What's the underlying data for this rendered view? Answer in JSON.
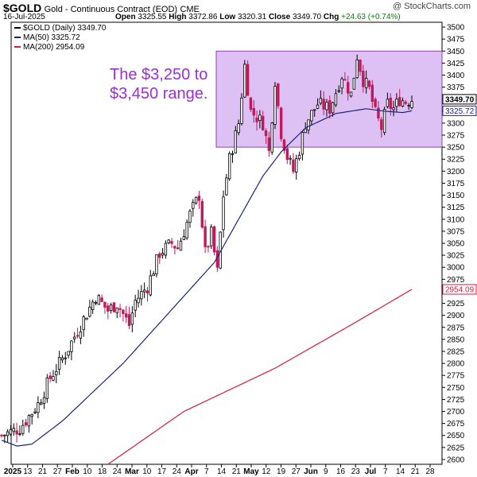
{
  "header": {
    "symbol": "$GOLD",
    "description": "Gold - Continuous Contract (EOD)",
    "exchange": "CME",
    "date": "16-Jul-2025",
    "open_label": "Open",
    "open": "3325.55",
    "high_label": "High",
    "high": "3372.86",
    "low_label": "Low",
    "low": "3320.31",
    "close_label": "Close",
    "close": "3349.70",
    "chg_label": "Chg",
    "chg": "+24.63 (+0.74%)",
    "watermark": "@ StockCharts.com"
  },
  "legend": {
    "price": "$GOLD (Daily) 3349.70",
    "ma50": "MA(50) 3325.72",
    "ma200": "MA(200) 2954.09"
  },
  "annotation": "The $3,250 to\n$3,450 range.",
  "colors": {
    "up": "#000000",
    "down": "#c2185b",
    "ma50": "#1a237e",
    "ma200": "#d81b3f",
    "range_fill": "#d8b6f2",
    "range_stroke": "#8e44ad",
    "annotation": "#9b2fd4"
  },
  "chart_data": {
    "type": "candlestick",
    "y_axis_side": "right",
    "ylim": [
      2590,
      3510
    ],
    "y_ticks": [
      2600,
      2625,
      2650,
      2675,
      2700,
      2725,
      2750,
      2775,
      2800,
      2825,
      2850,
      2875,
      2900,
      2925,
      2950,
      2975,
      3000,
      3025,
      3050,
      3075,
      3100,
      3125,
      3150,
      3175,
      3200,
      3225,
      3250,
      3275,
      3300,
      3325,
      3350,
      3375,
      3400,
      3425,
      3450,
      3475,
      3500
    ],
    "x_ticks": [
      {
        "label": "2025",
        "bold": true
      },
      {
        "label": "13"
      },
      {
        "label": "21"
      },
      {
        "label": "27"
      },
      {
        "label": "Feb",
        "bold": true
      },
      {
        "label": "10"
      },
      {
        "label": "18"
      },
      {
        "label": "24"
      },
      {
        "label": "Mar",
        "bold": true
      },
      {
        "label": "10"
      },
      {
        "label": "17"
      },
      {
        "label": "24"
      },
      {
        "label": "Apr",
        "bold": true
      },
      {
        "label": "7"
      },
      {
        "label": "14"
      },
      {
        "label": "21"
      },
      {
        "label": "May",
        "bold": true
      },
      {
        "label": "12"
      },
      {
        "label": "19"
      },
      {
        "label": "27"
      },
      {
        "label": "Jun",
        "bold": true
      },
      {
        "label": "9"
      },
      {
        "label": "16"
      },
      {
        "label": "23"
      },
      {
        "label": "Jul",
        "bold": true
      },
      {
        "label": "7"
      },
      {
        "label": "14"
      },
      {
        "label": "21"
      },
      {
        "label": "28"
      }
    ],
    "price_tags": [
      {
        "value": 3349.7,
        "label": "3349.70",
        "style": "price"
      },
      {
        "value": 3325.72,
        "label": "3325.72",
        "style": "ma50"
      },
      {
        "value": 2954.09,
        "label": "2954.09",
        "style": "ma200"
      }
    ],
    "range_band": {
      "low": 3250,
      "high": 3450
    },
    "anchors": [
      [
        0,
        2650
      ],
      [
        6,
        2665
      ],
      [
        12,
        2715
      ],
      [
        16,
        2770
      ],
      [
        21,
        2820
      ],
      [
        26,
        2880
      ],
      [
        31,
        2940
      ],
      [
        35,
        2910
      ],
      [
        38,
        2925
      ],
      [
        42,
        2880
      ],
      [
        44,
        2930
      ],
      [
        48,
        2960
      ],
      [
        52,
        3030
      ],
      [
        56,
        3050
      ],
      [
        58,
        3040
      ],
      [
        62,
        3110
      ],
      [
        65,
        3150
      ],
      [
        67,
        3030
      ],
      [
        69,
        3070
      ],
      [
        71,
        2990
      ],
      [
        73,
        3150
      ],
      [
        75,
        3225
      ],
      [
        78,
        3300
      ],
      [
        80,
        3420
      ],
      [
        82,
        3325
      ],
      [
        86,
        3300
      ],
      [
        88,
        3240
      ],
      [
        90,
        3390
      ],
      [
        92,
        3280
      ],
      [
        94,
        3230
      ],
      [
        96,
        3200
      ],
      [
        98,
        3245
      ],
      [
        100,
        3300
      ],
      [
        104,
        3340
      ],
      [
        108,
        3330
      ],
      [
        112,
        3400
      ],
      [
        115,
        3360
      ],
      [
        117,
        3440
      ],
      [
        119,
        3390
      ],
      [
        121,
        3370
      ],
      [
        123,
        3320
      ],
      [
        125,
        3290
      ],
      [
        127,
        3340
      ],
      [
        129,
        3330
      ],
      [
        131,
        3350
      ],
      [
        133,
        3345
      ],
      [
        135,
        3350
      ]
    ],
    "ma50_anchors": [
      [
        0,
        2640
      ],
      [
        5,
        2628
      ],
      [
        10,
        2632
      ],
      [
        20,
        2680
      ],
      [
        30,
        2740
      ],
      [
        40,
        2800
      ],
      [
        50,
        2870
      ],
      [
        60,
        2940
      ],
      [
        70,
        3010
      ],
      [
        78,
        3100
      ],
      [
        86,
        3190
      ],
      [
        92,
        3240
      ],
      [
        100,
        3290
      ],
      [
        110,
        3320
      ],
      [
        120,
        3330
      ],
      [
        126,
        3325
      ],
      [
        132,
        3322
      ],
      [
        135,
        3325.72
      ]
    ],
    "ma200_anchors": [
      [
        35,
        2590
      ],
      [
        60,
        2700
      ],
      [
        90,
        2790
      ],
      [
        115,
        2880
      ],
      [
        135,
        2954.09
      ]
    ]
  }
}
